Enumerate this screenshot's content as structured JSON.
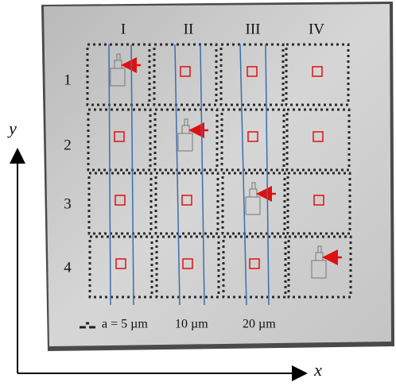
{
  "columns": [
    "I",
    "II",
    "III",
    "IV"
  ],
  "rows": [
    "1",
    "2",
    "3",
    "4"
  ],
  "axes": {
    "x": "x",
    "y": "y"
  },
  "scale_labels": [
    "a = 5 µm",
    "10 µm",
    "20 µm"
  ]
}
